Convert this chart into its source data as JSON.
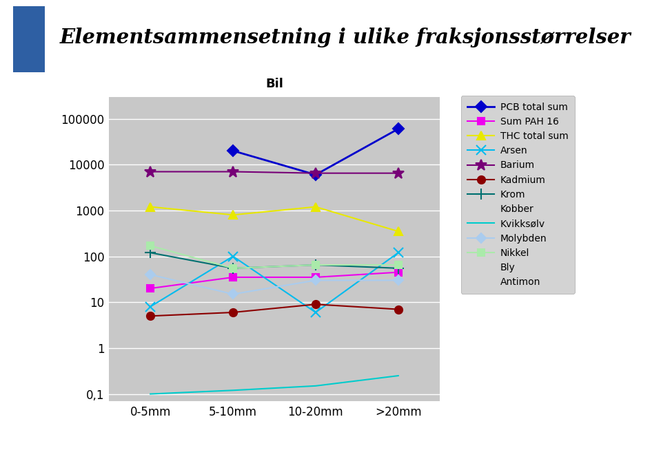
{
  "title": "Elementsammensetning i ulike fraksjonsstørrelser",
  "subtitle": "Bil",
  "x_labels": [
    "0-5mm",
    "5-10mm",
    "10-20mm",
    ">20mm"
  ],
  "plot_bg": "#c8c8c8",
  "fig_bg": "#ffffff",
  "header_rect_color": "#2E5FA3",
  "legend_bg": "#c8c8c8",
  "series": [
    {
      "name": "PCB total sum",
      "color": "#0000cc",
      "marker": "D",
      "markersize": 8,
      "linewidth": 2.0,
      "values": [
        null,
        20000,
        6000,
        60000
      ]
    },
    {
      "name": "Sum PAH 16",
      "color": "#ee00ee",
      "marker": "s",
      "markersize": 7,
      "linewidth": 1.5,
      "values": [
        20,
        35,
        35,
        45
      ]
    },
    {
      "name": "THC total sum",
      "color": "#e8e800",
      "marker": "^",
      "markersize": 9,
      "linewidth": 1.5,
      "values": [
        1200,
        800,
        1200,
        350
      ]
    },
    {
      "name": "Arsen",
      "color": "#00bbee",
      "marker": "x",
      "markersize": 10,
      "linewidth": 1.5,
      "values": [
        8,
        100,
        6,
        120
      ]
    },
    {
      "name": "Barium",
      "color": "#770077",
      "marker": "*",
      "markersize": 12,
      "linewidth": 1.5,
      "values": [
        7000,
        7000,
        6500,
        6500
      ]
    },
    {
      "name": "Kadmium",
      "color": "#8B0000",
      "marker": "o",
      "markersize": 8,
      "linewidth": 1.5,
      "values": [
        5,
        6,
        9,
        7
      ]
    },
    {
      "name": "Krom",
      "color": "#007070",
      "marker": "+",
      "markersize": 11,
      "linewidth": 1.5,
      "values": [
        120,
        55,
        65,
        55
      ]
    },
    {
      "name": "Kobber",
      "color": "#000099",
      "marker": null,
      "markersize": 6,
      "linewidth": 1.5,
      "values": [
        null,
        null,
        null,
        null
      ]
    },
    {
      "name": "Kvikksølv",
      "color": "#00cccc",
      "marker": null,
      "markersize": 6,
      "linewidth": 1.5,
      "values": [
        0.1,
        0.12,
        0.15,
        0.25
      ]
    },
    {
      "name": "Molybden",
      "color": "#aaccee",
      "marker": "D",
      "markersize": 7,
      "linewidth": 1.5,
      "values": [
        40,
        15,
        30,
        30
      ]
    },
    {
      "name": "Nikkel",
      "color": "#aaeaaa",
      "marker": "s",
      "markersize": 7,
      "linewidth": 1.5,
      "values": [
        170,
        55,
        65,
        65
      ]
    },
    {
      "name": "Bly",
      "color": "#dddd00",
      "marker": "^",
      "markersize": 9,
      "linewidth": 1.5,
      "values": [
        null,
        null,
        null,
        null
      ]
    },
    {
      "name": "Antimon",
      "color": "#88ccff",
      "marker": "x",
      "markersize": 8,
      "linewidth": 1.5,
      "values": [
        null,
        null,
        null,
        null
      ]
    }
  ],
  "yticks": [
    0.1,
    1,
    10,
    100,
    1000,
    10000,
    100000
  ],
  "ylabels": [
    "0,1",
    "1",
    "10",
    "100",
    "1000",
    "10000",
    "100000"
  ],
  "ylim": [
    0.07,
    300000
  ]
}
